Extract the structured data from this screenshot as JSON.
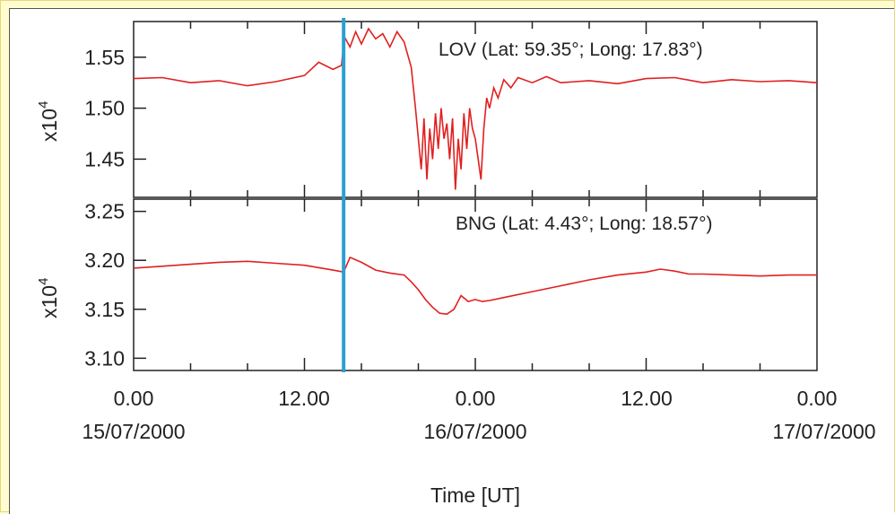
{
  "figure": {
    "xlabel": "Time [UT]",
    "x_ticks": [
      "0.00",
      "12.00",
      "0.00",
      "12.00",
      "0.00"
    ],
    "x_dates": [
      "15/07/2000",
      "16/07/2000",
      "17/07/2000"
    ],
    "event_marker_hours": 14.75,
    "colors": {
      "series": "#e02020",
      "event_marker": "#2aa0d0",
      "frame_bg": "#fffdd0"
    }
  },
  "chart_data": [
    {
      "type": "line",
      "label": "LOV (Lat: 59.35°; Long: 17.83°)",
      "ylabel": "x10",
      "ylabel_exponent": "4",
      "xlim": [
        0,
        48
      ],
      "ylim": [
        1.4125,
        1.585
      ],
      "y_ticks": [
        "1.55",
        "1.50",
        "1.45"
      ],
      "y_tick_values": [
        1.55,
        1.5,
        1.45
      ],
      "grid": false,
      "series": [
        {
          "x": [
            0,
            2,
            4,
            6,
            8,
            10,
            12,
            13,
            14,
            14.6,
            14.8,
            15.2,
            15.6,
            16,
            16.5,
            17,
            17.5,
            18,
            18.5,
            19,
            19.5,
            19.8,
            20.0,
            20.2,
            20.4,
            20.6,
            20.8,
            21.0,
            21.2,
            21.4,
            21.6,
            21.8,
            22.0,
            22.2,
            22.4,
            22.6,
            22.8,
            23.0,
            23.2,
            23.4,
            23.6,
            23.8,
            24.0,
            24.2,
            24.4,
            24.6,
            24.8,
            25.0,
            25.3,
            25.6,
            26,
            26.5,
            27,
            28,
            29,
            30,
            32,
            34,
            36,
            38,
            40,
            42,
            44,
            46,
            48
          ],
          "y": [
            1.529,
            1.53,
            1.525,
            1.527,
            1.522,
            1.526,
            1.532,
            1.545,
            1.538,
            1.542,
            1.57,
            1.56,
            1.575,
            1.563,
            1.578,
            1.568,
            1.573,
            1.56,
            1.575,
            1.565,
            1.54,
            1.5,
            1.47,
            1.44,
            1.49,
            1.43,
            1.48,
            1.45,
            1.495,
            1.46,
            1.5,
            1.47,
            1.485,
            1.45,
            1.49,
            1.42,
            1.47,
            1.44,
            1.495,
            1.46,
            1.5,
            1.48,
            1.47,
            1.45,
            1.43,
            1.48,
            1.51,
            1.5,
            1.52,
            1.51,
            1.528,
            1.52,
            1.53,
            1.525,
            1.531,
            1.525,
            1.527,
            1.524,
            1.529,
            1.53,
            1.525,
            1.528,
            1.526,
            1.527,
            1.525
          ]
        }
      ]
    },
    {
      "type": "line",
      "label": "BNG (Lat: 4.43°; Long: 18.57°)",
      "ylabel": "x10",
      "ylabel_exponent": "4",
      "xlim": [
        0,
        48
      ],
      "ylim": [
        3.0875,
        3.2625
      ],
      "y_ticks": [
        "3.25",
        "3.20",
        "3.15",
        "3.10"
      ],
      "y_tick_values": [
        3.25,
        3.2,
        3.15,
        3.1
      ],
      "grid": false,
      "series": [
        {
          "x": [
            0,
            2,
            4,
            6,
            8,
            10,
            12,
            14,
            14.75,
            15.2,
            16,
            17,
            18,
            19,
            19.5,
            20,
            20.5,
            21,
            21.5,
            22,
            22.5,
            23,
            23.5,
            24,
            24.5,
            25,
            26,
            28,
            30,
            32,
            34,
            36,
            37,
            38,
            39,
            40,
            42,
            44,
            46,
            48
          ],
          "y": [
            3.192,
            3.194,
            3.196,
            3.198,
            3.199,
            3.197,
            3.195,
            3.19,
            3.188,
            3.203,
            3.198,
            3.19,
            3.187,
            3.185,
            3.178,
            3.17,
            3.16,
            3.152,
            3.146,
            3.145,
            3.15,
            3.164,
            3.158,
            3.16,
            3.158,
            3.159,
            3.162,
            3.168,
            3.174,
            3.18,
            3.185,
            3.188,
            3.191,
            3.189,
            3.186,
            3.186,
            3.185,
            3.184,
            3.185,
            3.185
          ]
        }
      ]
    }
  ]
}
